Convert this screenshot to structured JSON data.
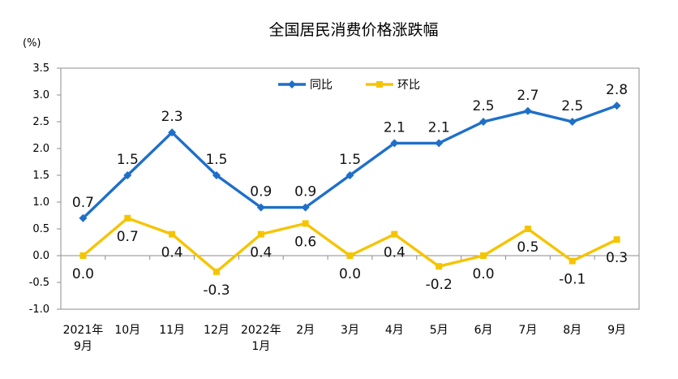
{
  "chart_data": {
    "type": "line",
    "title": "全国居民消费价格涨跌幅",
    "ylabel": "(%)",
    "xlabel": "",
    "ylim": [
      -1.0,
      3.5
    ],
    "yticks": [
      "3.5",
      "3.0",
      "2.5",
      "2.0",
      "1.5",
      "1.0",
      "0.5",
      "0.0",
      "-0.5",
      "-1.0"
    ],
    "categories": [
      {
        "l1": "2021年",
        "l2": "9月"
      },
      {
        "l1": "10月",
        "l2": ""
      },
      {
        "l1": "11月",
        "l2": ""
      },
      {
        "l1": "12月",
        "l2": ""
      },
      {
        "l1": "2022年",
        "l2": "1月"
      },
      {
        "l1": "2月",
        "l2": ""
      },
      {
        "l1": "3月",
        "l2": ""
      },
      {
        "l1": "4月",
        "l2": ""
      },
      {
        "l1": "5月",
        "l2": ""
      },
      {
        "l1": "6月",
        "l2": ""
      },
      {
        "l1": "7月",
        "l2": ""
      },
      {
        "l1": "8月",
        "l2": ""
      },
      {
        "l1": "9月",
        "l2": ""
      }
    ],
    "grid": false,
    "legend_position": "top-center",
    "series": [
      {
        "name": "同比",
        "color": "#1f6fc9",
        "marker": "diamond",
        "values": [
          0.7,
          1.5,
          2.3,
          1.5,
          0.9,
          0.9,
          1.5,
          2.1,
          2.1,
          2.5,
          2.7,
          2.5,
          2.8
        ],
        "labels": [
          "0.7",
          "1.5",
          "2.3",
          "1.5",
          "0.9",
          "0.9",
          "1.5",
          "2.1",
          "2.1",
          "2.5",
          "2.7",
          "2.5",
          "2.8"
        ]
      },
      {
        "name": "环比",
        "color": "#f5c400",
        "marker": "square",
        "values": [
          0.0,
          0.7,
          0.4,
          -0.3,
          0.4,
          0.6,
          0.0,
          0.4,
          -0.2,
          0.0,
          0.5,
          -0.1,
          0.3
        ],
        "labels": [
          "0.0",
          "0.7",
          "0.4",
          "-0.3",
          "0.4",
          "0.6",
          "0.0",
          "0.4",
          "-0.2",
          "0.0",
          "0.5",
          "-0.1",
          "0.3"
        ]
      }
    ]
  }
}
